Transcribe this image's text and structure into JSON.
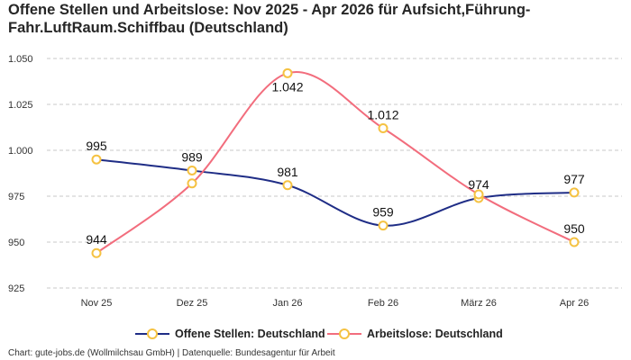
{
  "chart_title_line1": "Offene Stellen und Arbeitslose: Nov 2025 - Apr 2026 für Aufsicht,Führung-",
  "chart_title_line2": "Fahr.LuftRaum.Schiffbau (Deutschland)",
  "footer": "Chart: gute-jobs.de (Wollmilchsau GmbH) | Datenquelle: Bundesagentur für Arbeit",
  "colors": {
    "series1": "#1f2d86",
    "series2": "#f26d7d",
    "marker_stroke": "#f5c242",
    "grid": "#c8c8c8"
  },
  "chart_data": {
    "type": "line",
    "title": "Offene Stellen und Arbeitslose: Nov 2025 - Apr 2026 für Aufsicht,Führung-Fahr.LuftRaum.Schiffbau (Deutschland)",
    "categories": [
      "Nov 25",
      "Dez 25",
      "Jan 26",
      "Feb 26",
      "März 26",
      "Apr 26"
    ],
    "ylim": [
      925,
      1050
    ],
    "yticks": [
      925,
      950,
      975,
      1000,
      1025,
      1050
    ],
    "ytick_labels": [
      "925",
      "950",
      "975",
      "1.000",
      "1.025",
      "1.050"
    ],
    "grid": true,
    "legend_position": "bottom",
    "series": [
      {
        "name": "Offene Stellen: Deutschland",
        "values": [
          995,
          989,
          981,
          959,
          974,
          977
        ],
        "labels": [
          "995",
          "989",
          "981",
          "959",
          "974",
          "977"
        ]
      },
      {
        "name": "Arbeitslose: Deutschland",
        "values": [
          944,
          982,
          1042,
          1012,
          976,
          950
        ],
        "labels": [
          "944",
          "",
          "1.042",
          "1.012",
          "",
          "950"
        ]
      }
    ]
  }
}
